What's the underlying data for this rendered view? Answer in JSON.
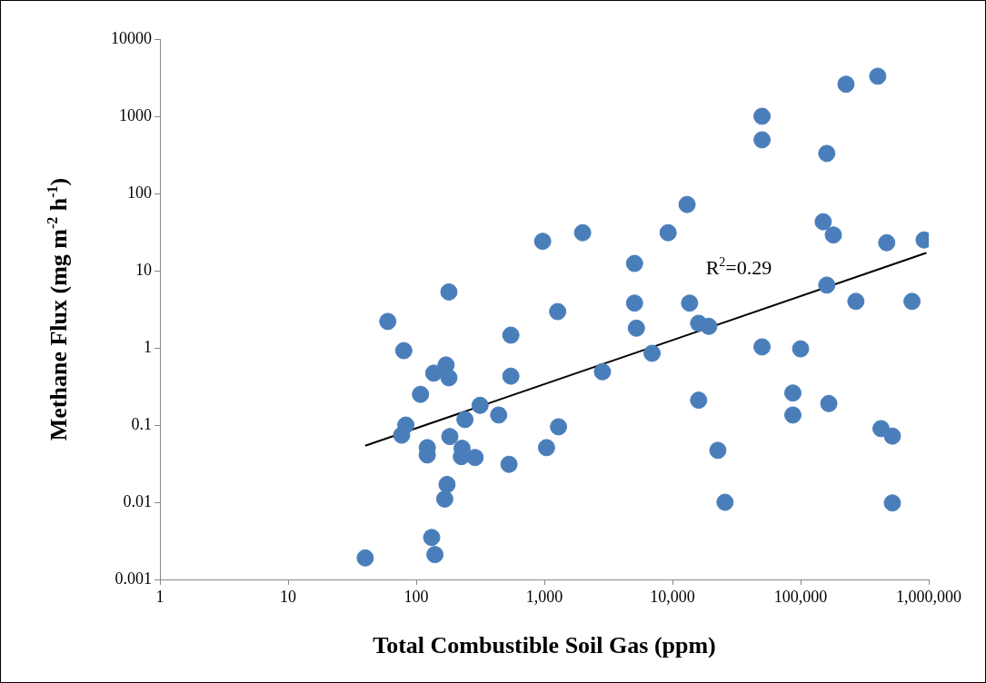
{
  "chart_data": {
    "type": "scatter",
    "xlabel": "Total Combustible Soil Gas (ppm)",
    "ylabel": "Methane Flux (mg m$^{-2}$ h$^{-1}$)",
    "annotations": [
      "R$^{2}$=0.29"
    ],
    "log": "xy",
    "grid": false,
    "legend": false,
    "xlim": [
      1,
      1000000
    ],
    "xticks": [
      1,
      10,
      100,
      {
        "value": 1000,
        "label": "1,000"
      },
      {
        "value": 10000,
        "label": "10,000"
      },
      {
        "value": 100000,
        "label": "100,000"
      },
      {
        "value": 1000000,
        "label": "1,000,000"
      }
    ],
    "ylim": [
      0.001,
      10000
    ],
    "yticks": [
      0.001,
      0.01,
      0.1,
      1,
      10,
      100,
      1000,
      10000
    ],
    "series": [
      {
        "type": "scatter",
        "marker": "circle",
        "color": "#4a7ebb",
        "x": [
          40,
          60,
          80,
          83,
          77,
          108,
          122,
          122,
          132,
          137,
          140,
          171,
          180,
          180,
          174,
          167,
          183,
          228,
          225,
          240,
          288,
          315,
          440,
          530,
          548,
          548,
          970,
          1270,
          1040,
          1290,
          1990,
          2840,
          5060,
          5060,
          5230,
          6930,
          9250,
          13000,
          13600,
          16000,
          16000,
          19200,
          22600,
          25700,
          50000,
          50000,
          50000,
          87000,
          87000,
          100000,
          150000,
          160000,
          160000,
          166000,
          180000,
          270000,
          226000,
          400000,
          424000,
          470000,
          520000,
          520000,
          740000,
          920000
        ],
        "values": [
          0.0019,
          2.2,
          0.92,
          0.1,
          0.074,
          0.25,
          0.051,
          0.041,
          0.0035,
          0.47,
          0.0021,
          0.6,
          0.41,
          5.3,
          0.017,
          0.011,
          0.071,
          0.05,
          0.039,
          0.118,
          0.038,
          0.18,
          0.135,
          0.031,
          1.46,
          0.43,
          24,
          2.95,
          0.051,
          0.095,
          31,
          0.49,
          12.4,
          3.8,
          1.8,
          0.85,
          31,
          72,
          3.8,
          2.08,
          0.21,
          1.9,
          0.047,
          0.01,
          1000,
          495,
          1.03,
          0.26,
          0.135,
          0.97,
          43,
          330,
          6.5,
          0.19,
          29,
          4,
          2600,
          3300,
          0.09,
          23,
          0.072,
          0.0098,
          4,
          25
        ]
      },
      {
        "type": "line",
        "marker": "none",
        "line_style": "solid",
        "color": "#000000",
        "x": [
          40,
          960000
        ],
        "values": [
          0.054,
          17
        ]
      }
    ]
  }
}
